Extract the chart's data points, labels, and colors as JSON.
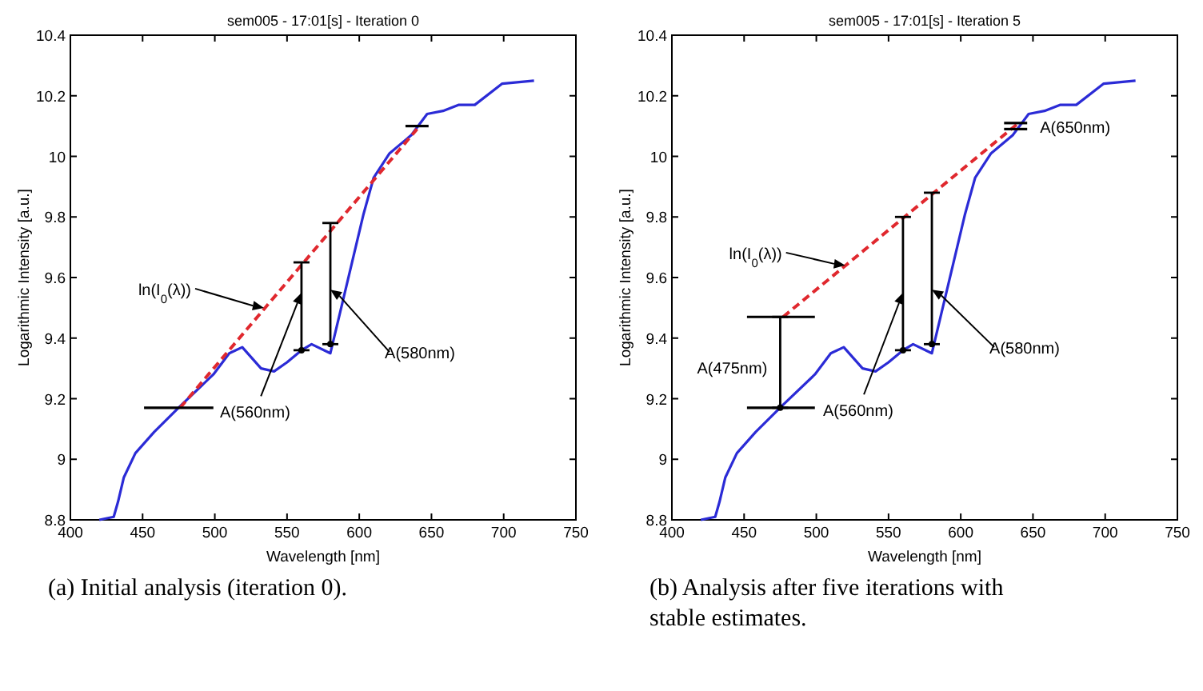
{
  "chart_data": [
    {
      "type": "line",
      "title": "sem005  -  17:01[s]  -  Iteration 0",
      "xlabel": "Wavelength [nm]",
      "ylabel": "Logarithmic Intensity [a.u.]",
      "xlim": [
        400,
        750
      ],
      "ylim": [
        8.8,
        10.4
      ],
      "xticks": [
        400,
        450,
        500,
        550,
        600,
        650,
        700,
        750
      ],
      "yticks": [
        8.8,
        9,
        9.2,
        9.4,
        9.6,
        9.8,
        10,
        10.2,
        10.4
      ],
      "grid": false,
      "series": [
        {
          "color": "#2b2bd6",
          "line_style": "solid",
          "x": [
            420,
            430,
            433,
            437,
            445,
            458,
            477,
            499,
            510,
            519,
            532,
            541,
            550,
            560,
            567,
            580,
            588,
            595,
            603,
            610,
            621,
            636,
            647,
            658,
            669,
            680,
            699,
            721
          ],
          "values": [
            8.8,
            8.81,
            8.86,
            8.94,
            9.02,
            9.09,
            9.18,
            9.28,
            9.35,
            9.37,
            9.3,
            9.29,
            9.32,
            9.36,
            9.38,
            9.35,
            9.51,
            9.65,
            9.81,
            9.93,
            10.01,
            10.07,
            10.14,
            10.15,
            10.17,
            10.17,
            10.24,
            10.25
          ]
        },
        {
          "color": "#e0282e",
          "line_style": "dashed",
          "x": [
            476,
            640
          ],
          "values": [
            9.17,
            10.09
          ]
        },
        {
          "color": "#000000",
          "line_style": "solid",
          "x": [
            451,
            499
          ],
          "values": [
            9.17,
            9.17
          ]
        },
        {
          "color": "#000000",
          "line_style": "solid",
          "x": [
            632,
            648
          ],
          "values": [
            10.1,
            10.1
          ]
        },
        {
          "type": "scatter",
          "color": "#000000",
          "x": [
            560,
            580
          ],
          "values": [
            9.36,
            9.38
          ],
          "errors": [
            [
              9.36,
              9.65
            ],
            [
              9.38,
              9.78
            ]
          ]
        }
      ],
      "annotations": [
        {
          "text": "ln(I$_{0}$(λ))",
          "x": 534,
          "y": 9.5
        },
        {
          "text": "A(560nm)",
          "x": 560,
          "y": 9.55
        },
        {
          "text": "A(580nm)",
          "x": 580,
          "y": 9.56
        },
        "(a) Initial analysis (iteration 0)."
      ]
    },
    {
      "type": "line",
      "title": "sem005  -  17:01[s]  -  Iteration 5",
      "xlabel": "Wavelength [nm]",
      "ylabel": "Logarithmic Intensity [a.u.]",
      "xlim": [
        400,
        750
      ],
      "ylim": [
        8.8,
        10.4
      ],
      "xticks": [
        400,
        450,
        500,
        550,
        600,
        650,
        700,
        750
      ],
      "yticks": [
        8.8,
        9,
        9.2,
        9.4,
        9.6,
        9.8,
        10,
        10.2,
        10.4
      ],
      "grid": false,
      "series": [
        {
          "color": "#2b2bd6",
          "line_style": "solid",
          "x": [
            420,
            430,
            433,
            437,
            445,
            458,
            477,
            499,
            510,
            519,
            532,
            541,
            550,
            560,
            567,
            580,
            588,
            595,
            603,
            610,
            621,
            636,
            647,
            658,
            669,
            680,
            699,
            721
          ],
          "values": [
            8.8,
            8.81,
            8.86,
            8.94,
            9.02,
            9.09,
            9.18,
            9.28,
            9.35,
            9.37,
            9.3,
            9.29,
            9.32,
            9.36,
            9.38,
            9.35,
            9.51,
            9.65,
            9.81,
            9.93,
            10.01,
            10.07,
            10.14,
            10.15,
            10.17,
            10.17,
            10.24,
            10.25
          ]
        },
        {
          "color": "#e0282e",
          "line_style": "dashed",
          "x": [
            477,
            640
          ],
          "values": [
            9.47,
            10.11
          ]
        },
        {
          "color": "#000000",
          "line_style": "solid",
          "x": [
            452,
            499
          ],
          "values": [
            9.17,
            9.17
          ]
        },
        {
          "color": "#000000",
          "line_style": "solid",
          "x": [
            452,
            499
          ],
          "values": [
            9.47,
            9.47
          ]
        },
        {
          "color": "#000000",
          "line_style": "solid",
          "x": [
            630,
            646
          ],
          "values": [
            10.09,
            10.09
          ]
        },
        {
          "color": "#000000",
          "line_style": "solid",
          "x": [
            630,
            646
          ],
          "values": [
            10.11,
            10.11
          ]
        },
        {
          "type": "scatter",
          "color": "#000000",
          "x": [
            475,
            560,
            580
          ],
          "values": [
            9.17,
            9.36,
            9.38
          ],
          "errors": [
            [
              9.17,
              9.47
            ],
            [
              9.36,
              9.8
            ],
            [
              9.38,
              9.88
            ]
          ]
        }
      ],
      "annotations": [
        {
          "text": "ln(I$_{0}$(λ))",
          "x": 520,
          "y": 9.64
        },
        {
          "text": "A(475nm)",
          "x": 475,
          "y": 9.32
        },
        {
          "text": "A(560nm)",
          "x": 560,
          "y": 9.55
        },
        {
          "text": "A(580nm)",
          "x": 580,
          "y": 9.56
        },
        {
          "text": "A(650nm)",
          "x": 646,
          "y": 10.1
        },
        "(b) Analysis after five iterations with stable estimates."
      ]
    }
  ]
}
